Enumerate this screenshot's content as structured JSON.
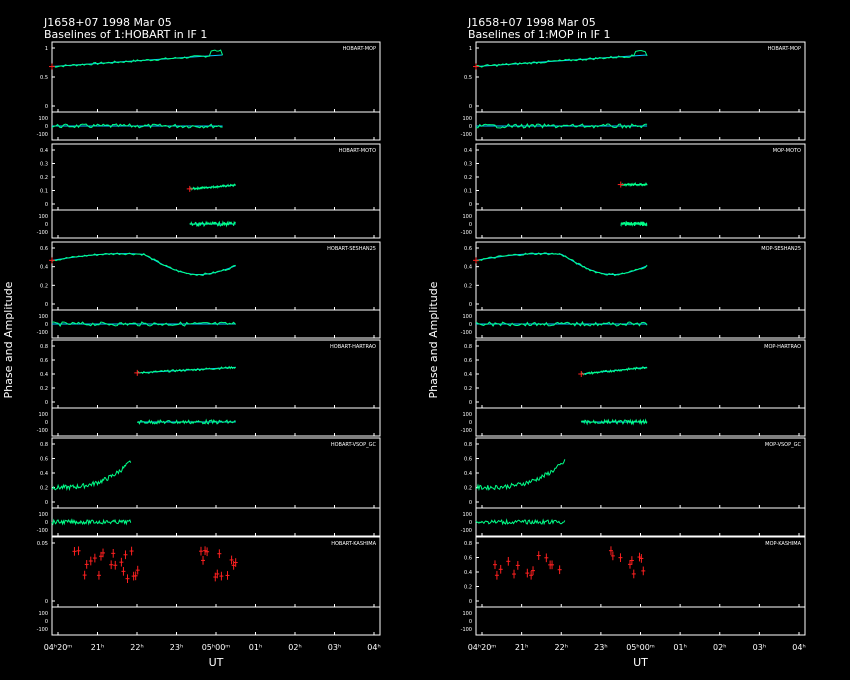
{
  "plots": [
    {
      "title_line1": "J1658+07  1998 Mar 05",
      "title_line2": "Baselines of 1:HOBART in IF 1",
      "ylabel": "Phase and Amplitude",
      "xlabel": "UT",
      "xticks": [
        "04ʰ20ᵐ",
        "21ʰ",
        "22ʰ",
        "23ʰ",
        "05ʰ00ᵐ",
        "01ʰ",
        "02ʰ",
        "03ʰ",
        "04ʰ"
      ],
      "baselines": [
        {
          "label": "HOBART-MOP",
          "amp_ticks": [
            "1",
            "0.5",
            "0"
          ],
          "amp_max": 1.0,
          "track": {
            "type": "linear",
            "start": [
              0.0,
              0.68
            ],
            "end": [
              0.52,
              0.88
            ],
            "bump": [
              0.48,
              0.52,
              0.95
            ]
          }
        },
        {
          "label": "HOBART-MOTO",
          "amp_ticks": [
            "0.4",
            "0.3",
            "0.2",
            "0.1",
            "0"
          ],
          "amp_max": 0.4,
          "track": {
            "type": "linear",
            "start": [
              0.42,
              0.28
            ],
            "end": [
              0.56,
              0.35
            ]
          }
        },
        {
          "label": "HOBART-SESHAN25",
          "amp_ticks": [
            "0.6",
            "0.4",
            "0.2",
            "0"
          ],
          "amp_max": 0.6,
          "track": {
            "type": "wave",
            "start": 0.0,
            "end": 0.56
          }
        },
        {
          "label": "HOBART-HARTRAO",
          "amp_ticks": [
            "0.8",
            "0.6",
            "0.4",
            "0.2",
            "0"
          ],
          "amp_max": 0.8,
          "track": {
            "type": "linear",
            "start": [
              0.26,
              0.52
            ],
            "end": [
              0.56,
              0.62
            ]
          }
        },
        {
          "label": "HOBART-VSOP_GC",
          "amp_ticks": [
            "0.8",
            "0.6",
            "0.4",
            "0.2",
            "0"
          ],
          "amp_max": 0.8,
          "track": {
            "type": "vsop",
            "start": 0.0,
            "end": 0.24
          }
        },
        {
          "label": "HOBART-KASHIMA",
          "amp_ticks": [
            "0.05",
            "0"
          ],
          "amp_max": 0.08,
          "track": {
            "type": "scatter",
            "start": 0.0,
            "end": 0.56
          }
        }
      ]
    },
    {
      "title_line1": "J1658+07  1998 Mar 05",
      "title_line2": "Baselines of 1:MOP in IF 1",
      "ylabel": "Phase and Amplitude",
      "xlabel": "UT",
      "xticks": [
        "04ʰ20ᵐ",
        "21ʰ",
        "22ʰ",
        "23ʰ",
        "05ʰ00ᵐ",
        "01ʰ",
        "02ʰ",
        "03ʰ",
        "04ʰ"
      ],
      "baselines": [
        {
          "label": "HOBART-MOP",
          "amp_ticks": [
            "1",
            "0.5",
            "0"
          ],
          "amp_max": 1.0,
          "track": {
            "type": "linear",
            "start": [
              0.0,
              0.68
            ],
            "end": [
              0.52,
              0.88
            ],
            "bump": [
              0.48,
              0.52,
              0.95
            ]
          }
        },
        {
          "label": "MOP-MOTO",
          "amp_ticks": [
            "0.4",
            "0.3",
            "0.2",
            "0.1",
            "0"
          ],
          "amp_max": 0.4,
          "track": {
            "type": "linear",
            "start": [
              0.44,
              0.36
            ],
            "end": [
              0.52,
              0.36
            ]
          }
        },
        {
          "label": "MOP-SESHAN25",
          "amp_ticks": [
            "0.6",
            "0.4",
            "0.2",
            "0"
          ],
          "amp_max": 0.6,
          "track": {
            "type": "wave2",
            "start": 0.0,
            "end": 0.52
          }
        },
        {
          "label": "MOP-HARTRAO",
          "amp_ticks": [
            "0.8",
            "0.6",
            "0.4",
            "0.2",
            "0"
          ],
          "amp_max": 0.8,
          "track": {
            "type": "linear",
            "start": [
              0.32,
              0.5
            ],
            "end": [
              0.52,
              0.62
            ]
          }
        },
        {
          "label": "MOP-VSOP_GC",
          "amp_ticks": [
            "0.8",
            "0.6",
            "0.4",
            "0.2",
            "0"
          ],
          "amp_max": 0.8,
          "track": {
            "type": "vsop",
            "start": 0.0,
            "end": 0.27
          }
        },
        {
          "label": "MOP-KASHIMA",
          "amp_ticks": [
            "0.8",
            "0.6",
            "0.4",
            "0.2",
            "0"
          ],
          "amp_max": 0.8,
          "track": {
            "type": "scatter2",
            "start": 0.0,
            "end": 0.52
          }
        }
      ]
    }
  ],
  "phase_ticks": [
    "100",
    "0",
    "-100"
  ],
  "colors": {
    "model": "#00c8ff",
    "data": "#00ff88",
    "flag": "#ff2020",
    "frame": "#ffffff"
  },
  "chart_data": {
    "type": "line",
    "title": "J1658+07  1998 Mar 05",
    "xlabel": "UT",
    "ylabel": "Phase and Amplitude",
    "grid": false
  }
}
